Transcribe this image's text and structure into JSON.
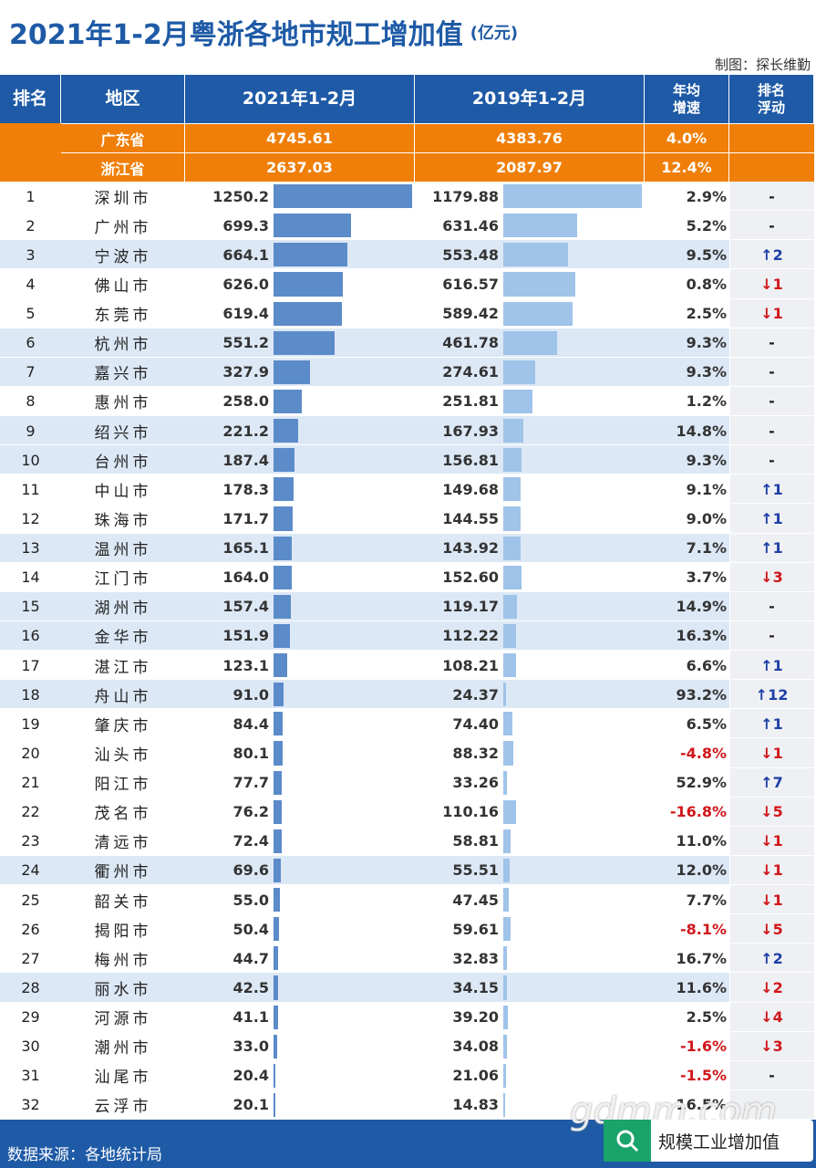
{
  "header": {
    "title": "2021年1-2月粤浙各地市规工增加值",
    "unit": "(亿元)",
    "credit": "制图：探长维勤"
  },
  "table": {
    "columns": [
      [
        "排名"
      ],
      [
        "地区"
      ],
      [
        "2021年1-2月"
      ],
      [
        "2019年1-2月"
      ],
      [
        "年均",
        "增速"
      ],
      [
        "排名",
        "浮动"
      ]
    ],
    "summary_rows": [
      [
        "广东省",
        "4745.61",
        "4383.76",
        "4.0%"
      ],
      [
        "浙江省",
        "2637.03",
        "2087.97",
        "12.4%"
      ]
    ],
    "rows": [
      [
        "1",
        "深圳市",
        "1250.2",
        "1179.88",
        "2.9%",
        "-"
      ],
      [
        "2",
        "广州市",
        "699.3",
        "631.46",
        "5.2%",
        "-"
      ],
      [
        "3",
        "宁波市",
        "664.1",
        "553.48",
        "9.5%",
        "↑2"
      ],
      [
        "4",
        "佛山市",
        "626.0",
        "616.57",
        "0.8%",
        "↓1"
      ],
      [
        "5",
        "东莞市",
        "619.4",
        "589.42",
        "2.5%",
        "↓1"
      ],
      [
        "6",
        "杭州市",
        "551.2",
        "461.78",
        "9.3%",
        "-"
      ],
      [
        "7",
        "嘉兴市",
        "327.9",
        "274.61",
        "9.3%",
        "-"
      ],
      [
        "8",
        "惠州市",
        "258.0",
        "251.81",
        "1.2%",
        "-"
      ],
      [
        "9",
        "绍兴市",
        "221.2",
        "167.93",
        "14.8%",
        "-"
      ],
      [
        "10",
        "台州市",
        "187.4",
        "156.81",
        "9.3%",
        "-"
      ],
      [
        "11",
        "中山市",
        "178.3",
        "149.68",
        "9.1%",
        "↑1"
      ],
      [
        "12",
        "珠海市",
        "171.7",
        "144.55",
        "9.0%",
        "↑1"
      ],
      [
        "13",
        "温州市",
        "165.1",
        "143.92",
        "7.1%",
        "↑1"
      ],
      [
        "14",
        "江门市",
        "164.0",
        "152.60",
        "3.7%",
        "↓3"
      ],
      [
        "15",
        "湖州市",
        "157.4",
        "119.17",
        "14.9%",
        "-"
      ],
      [
        "16",
        "金华市",
        "151.9",
        "112.22",
        "16.3%",
        "-"
      ],
      [
        "17",
        "湛江市",
        "123.1",
        "108.21",
        "6.6%",
        "↑1"
      ],
      [
        "18",
        "舟山市",
        "91.0",
        "24.37",
        "93.2%",
        "↑12"
      ],
      [
        "19",
        "肇庆市",
        "84.4",
        "74.40",
        "6.5%",
        "↑1"
      ],
      [
        "20",
        "汕头市",
        "80.1",
        "88.32",
        "-4.8%",
        "↓1"
      ],
      [
        "21",
        "阳江市",
        "77.7",
        "33.26",
        "52.9%",
        "↑7"
      ],
      [
        "22",
        "茂名市",
        "76.2",
        "110.16",
        "-16.8%",
        "↓5"
      ],
      [
        "23",
        "清远市",
        "72.4",
        "58.81",
        "11.0%",
        "↓1"
      ],
      [
        "24",
        "衢州市",
        "69.6",
        "55.51",
        "12.0%",
        "↓1"
      ],
      [
        "25",
        "韶关市",
        "55.0",
        "47.45",
        "7.7%",
        "↓1"
      ],
      [
        "26",
        "揭阳市",
        "50.4",
        "59.61",
        "-8.1%",
        "↓5"
      ],
      [
        "27",
        "梅州市",
        "44.7",
        "32.83",
        "16.7%",
        "↑2"
      ],
      [
        "28",
        "丽水市",
        "42.5",
        "34.15",
        "11.6%",
        "↓2"
      ],
      [
        "29",
        "河源市",
        "41.1",
        "39.20",
        "2.5%",
        "↓4"
      ],
      [
        "30",
        "潮州市",
        "33.0",
        "34.08",
        "-1.6%",
        "↓3"
      ],
      [
        "31",
        "汕尾市",
        "20.4",
        "21.06",
        "-1.5%",
        "-"
      ],
      [
        "32",
        "云浮市",
        "20.1",
        "14.83",
        "16.5%",
        null
      ]
    ],
    "highlight": [
      2,
      5,
      6,
      8,
      9,
      12,
      14,
      15,
      17,
      23,
      27
    ],
    "highlight_color": "#dce8f5",
    "bar_colors": [
      "#5b8bc9",
      "#9fc3e9"
    ]
  },
  "footer": {
    "source": "数据来源：各地统计局",
    "watermark": "gdmm.com",
    "search": "规模工业增加值"
  }
}
